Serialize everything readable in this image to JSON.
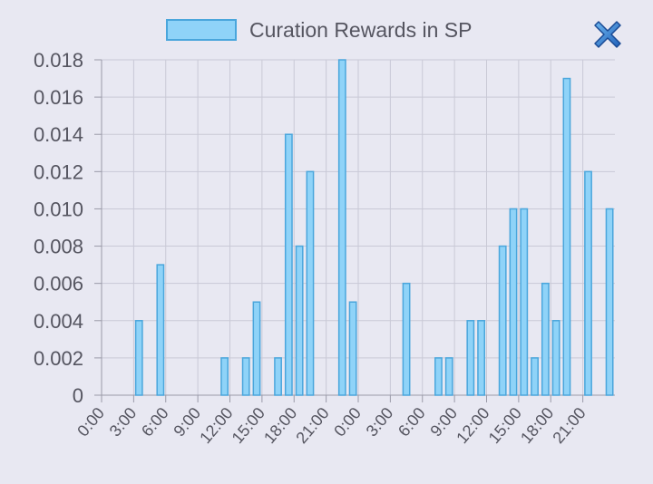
{
  "legend": {
    "label": "Curation Rewards in SP",
    "swatch_color": "#8fd3f8",
    "border_color": "#4aa6dc"
  },
  "close_icon": "close-icon",
  "chart_data": {
    "type": "bar",
    "series": [
      {
        "name": "Curation Rewards in SP",
        "color": "#8fd3f8",
        "border": "#4aa6dc"
      }
    ],
    "ylim": [
      0,
      0.018
    ],
    "yticks": [
      "0",
      "0.002",
      "0.004",
      "0.006",
      "0.008",
      "0.010",
      "0.012",
      "0.014",
      "0.016",
      "0.018"
    ],
    "xlim_hours": [
      0,
      48
    ],
    "xticks": [
      "0:00",
      "3:00",
      "6:00",
      "9:00",
      "12:00",
      "15:00",
      "18:00",
      "21:00",
      "0:00",
      "3:00",
      "6:00",
      "9:00",
      "12:00",
      "15:00",
      "18:00",
      "21:00"
    ],
    "grid": true,
    "points": [
      {
        "x": 3.5,
        "y": 0.004
      },
      {
        "x": 5.5,
        "y": 0.007
      },
      {
        "x": 11.5,
        "y": 0.002
      },
      {
        "x": 13.5,
        "y": 0.002
      },
      {
        "x": 14.5,
        "y": 0.005
      },
      {
        "x": 16.5,
        "y": 0.002
      },
      {
        "x": 17.5,
        "y": 0.014
      },
      {
        "x": 18.5,
        "y": 0.008
      },
      {
        "x": 19.5,
        "y": 0.012
      },
      {
        "x": 22.5,
        "y": 0.018
      },
      {
        "x": 23.5,
        "y": 0.005
      },
      {
        "x": 28.5,
        "y": 0.006
      },
      {
        "x": 31.5,
        "y": 0.002
      },
      {
        "x": 32.5,
        "y": 0.002
      },
      {
        "x": 34.5,
        "y": 0.004
      },
      {
        "x": 35.5,
        "y": 0.004
      },
      {
        "x": 37.5,
        "y": 0.008
      },
      {
        "x": 38.5,
        "y": 0.01
      },
      {
        "x": 39.5,
        "y": 0.01
      },
      {
        "x": 40.5,
        "y": 0.002
      },
      {
        "x": 41.5,
        "y": 0.006
      },
      {
        "x": 42.5,
        "y": 0.004
      },
      {
        "x": 43.5,
        "y": 0.017
      },
      {
        "x": 45.5,
        "y": 0.012
      },
      {
        "x": 47.5,
        "y": 0.01
      }
    ]
  }
}
